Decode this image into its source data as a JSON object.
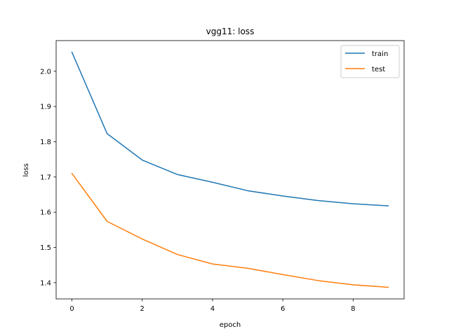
{
  "chart_data": {
    "type": "line",
    "title": "vgg11: loss",
    "xlabel": "epoch",
    "ylabel": "loss",
    "x": [
      0,
      1,
      2,
      3,
      4,
      5,
      6,
      7,
      8,
      9
    ],
    "series": [
      {
        "name": "train",
        "color": "#1f77b4",
        "values": [
          2.054,
          1.823,
          1.748,
          1.707,
          1.685,
          1.661,
          1.646,
          1.633,
          1.624,
          1.618
        ]
      },
      {
        "name": "test",
        "color": "#ff7f0e",
        "values": [
          1.71,
          1.574,
          1.524,
          1.48,
          1.453,
          1.441,
          1.423,
          1.406,
          1.394,
          1.387
        ]
      }
    ],
    "xlim": [
      -0.45,
      9.45
    ],
    "ylim": [
      1.354,
      2.087
    ],
    "xticks": [
      0,
      2,
      4,
      6,
      8
    ],
    "yticks": [
      1.4,
      1.5,
      1.6,
      1.7,
      1.8,
      1.9,
      2.0
    ],
    "xtick_labels": [
      "0",
      "2",
      "4",
      "6",
      "8"
    ],
    "ytick_labels": [
      "1.4",
      "1.5",
      "1.6",
      "1.7",
      "1.8",
      "1.9",
      "2.0"
    ],
    "grid": false,
    "legend": "top-right"
  }
}
